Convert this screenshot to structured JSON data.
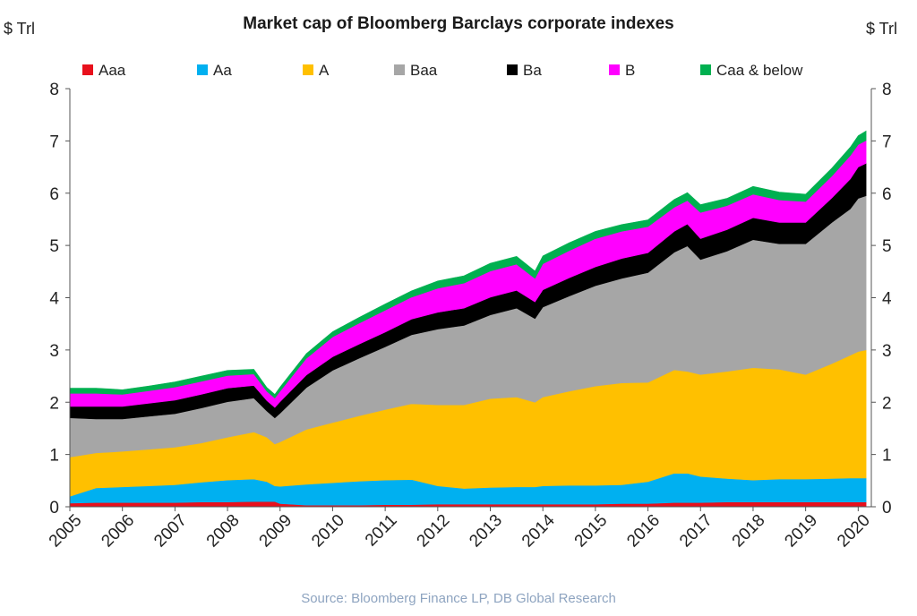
{
  "chart_data": {
    "type": "area",
    "stacked": true,
    "title": "Market cap of Bloomberg Barclays corporate indexes",
    "y_unit_left": "$ Trl",
    "y_unit_right": "$ Trl",
    "source": "Source: Bloomberg Finance LP, DB Global Research",
    "ylim": [
      0,
      8
    ],
    "y_ticks": [
      "0",
      "1",
      "2",
      "3",
      "4",
      "5",
      "6",
      "7",
      "8"
    ],
    "x_ticks": [
      "2005",
      "2006",
      "2007",
      "2008",
      "2009",
      "2010",
      "2011",
      "2012",
      "2013",
      "2014",
      "2015",
      "2016",
      "2017",
      "2018",
      "2019",
      "2020"
    ],
    "legend_position": "top",
    "x": [
      2005.0,
      2005.5,
      2006.0,
      2006.5,
      2007.0,
      2007.5,
      2008.0,
      2008.5,
      2008.75,
      2008.9,
      2009.0,
      2009.5,
      2010.0,
      2010.5,
      2011.0,
      2011.5,
      2012.0,
      2012.5,
      2013.0,
      2013.5,
      2013.85,
      2014.0,
      2014.5,
      2015.0,
      2015.5,
      2016.0,
      2016.5,
      2016.75,
      2017.0,
      2017.5,
      2018.0,
      2018.5,
      2019.0,
      2019.5,
      2019.85,
      2020.0,
      2020.15
    ],
    "series": [
      {
        "name": "Aaa",
        "color": "#e8101c",
        "values": [
          0.07,
          0.08,
          0.08,
          0.08,
          0.08,
          0.09,
          0.09,
          0.1,
          0.1,
          0.1,
          0.06,
          0.03,
          0.03,
          0.03,
          0.04,
          0.04,
          0.05,
          0.05,
          0.05,
          0.05,
          0.05,
          0.05,
          0.05,
          0.05,
          0.06,
          0.06,
          0.08,
          0.08,
          0.08,
          0.09,
          0.09,
          0.09,
          0.09,
          0.09,
          0.09,
          0.09,
          0.09
        ]
      },
      {
        "name": "Aa",
        "color": "#00b0f0",
        "values": [
          0.13,
          0.28,
          0.3,
          0.32,
          0.34,
          0.38,
          0.42,
          0.43,
          0.38,
          0.3,
          0.33,
          0.4,
          0.43,
          0.46,
          0.47,
          0.48,
          0.35,
          0.3,
          0.32,
          0.33,
          0.33,
          0.35,
          0.36,
          0.36,
          0.36,
          0.42,
          0.56,
          0.56,
          0.5,
          0.45,
          0.42,
          0.44,
          0.44,
          0.45,
          0.46,
          0.46,
          0.46
        ]
      },
      {
        "name": "A",
        "color": "#ffc000",
        "values": [
          0.75,
          0.67,
          0.68,
          0.7,
          0.72,
          0.75,
          0.82,
          0.9,
          0.85,
          0.8,
          0.85,
          1.05,
          1.15,
          1.25,
          1.35,
          1.45,
          1.55,
          1.6,
          1.7,
          1.72,
          1.62,
          1.7,
          1.8,
          1.9,
          1.95,
          1.9,
          1.98,
          1.95,
          1.95,
          2.05,
          2.15,
          2.1,
          2.0,
          2.2,
          2.35,
          2.42,
          2.45
        ]
      },
      {
        "name": "Baa",
        "color": "#a6a6a6",
        "values": [
          0.75,
          0.65,
          0.62,
          0.63,
          0.64,
          0.67,
          0.68,
          0.65,
          0.5,
          0.5,
          0.55,
          0.8,
          1.0,
          1.1,
          1.2,
          1.32,
          1.45,
          1.52,
          1.6,
          1.7,
          1.6,
          1.72,
          1.82,
          1.92,
          2.0,
          2.1,
          2.25,
          2.4,
          2.2,
          2.3,
          2.45,
          2.4,
          2.5,
          2.7,
          2.8,
          2.93,
          2.95
        ]
      },
      {
        "name": "Ba",
        "color": "#000000",
        "values": [
          0.22,
          0.24,
          0.24,
          0.25,
          0.26,
          0.26,
          0.26,
          0.24,
          0.2,
          0.2,
          0.22,
          0.24,
          0.26,
          0.27,
          0.28,
          0.3,
          0.32,
          0.33,
          0.34,
          0.34,
          0.32,
          0.33,
          0.35,
          0.36,
          0.38,
          0.38,
          0.4,
          0.42,
          0.4,
          0.41,
          0.42,
          0.41,
          0.41,
          0.47,
          0.57,
          0.6,
          0.62
        ]
      },
      {
        "name": "B",
        "color": "#ff00ff",
        "values": [
          0.25,
          0.25,
          0.23,
          0.24,
          0.25,
          0.25,
          0.24,
          0.22,
          0.18,
          0.18,
          0.2,
          0.32,
          0.38,
          0.4,
          0.42,
          0.42,
          0.46,
          0.48,
          0.5,
          0.5,
          0.45,
          0.5,
          0.52,
          0.54,
          0.52,
          0.5,
          0.46,
          0.45,
          0.5,
          0.46,
          0.45,
          0.43,
          0.4,
          0.42,
          0.45,
          0.43,
          0.44
        ]
      },
      {
        "name": "Caa & below",
        "color": "#00b050",
        "values": [
          0.1,
          0.1,
          0.09,
          0.09,
          0.1,
          0.1,
          0.1,
          0.09,
          0.07,
          0.07,
          0.08,
          0.09,
          0.1,
          0.11,
          0.12,
          0.12,
          0.14,
          0.14,
          0.15,
          0.15,
          0.14,
          0.15,
          0.15,
          0.14,
          0.13,
          0.13,
          0.15,
          0.15,
          0.15,
          0.14,
          0.15,
          0.15,
          0.14,
          0.15,
          0.16,
          0.17,
          0.18
        ]
      }
    ]
  }
}
